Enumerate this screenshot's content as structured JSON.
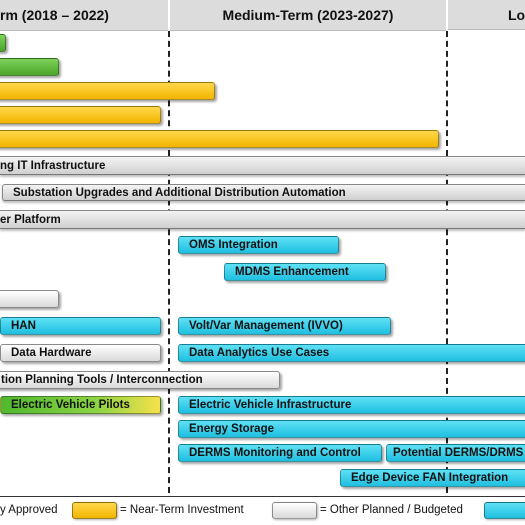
{
  "headers": {
    "near_term": "rm (2018 – 2022)",
    "medium_term": "Medium-Term (2023-2027)",
    "long_term": "Lo"
  },
  "bands": {
    "it_infrastructure": "ng IT Infrastructure",
    "substation": "Substation Upgrades and Additional Distribution Automation",
    "platform": "er Platform",
    "planning_tools": "tion Planning Tools / Interconnection"
  },
  "bars": {
    "oms": "OMS Integration",
    "mdms": "MDMS Enhancement",
    "han": "HAN",
    "vvo": "Volt/Var Management (IVVO)",
    "data_hw": "Data Hardware",
    "analytics": "Data Analytics Use Cases",
    "ev_pilots": "Electric Vehicle Pilots",
    "ev_infra": "Electric Vehicle Infrastructure",
    "storage": "Energy Storage",
    "derms_mc": "DERMS Monitoring and Control",
    "derms_pot": "Potential DERMS/DRMS",
    "edge": "Edge Device FAN Integration"
  },
  "legend": {
    "approved": "y Approved",
    "near_term": "= Near-Term Investment",
    "other": "= Other Planned / Budgeted"
  },
  "colors": {
    "approved": "#4aa52a",
    "near_term": "#f2b400",
    "other": "#d9d9d9",
    "planned": "#1fbfe0"
  }
}
